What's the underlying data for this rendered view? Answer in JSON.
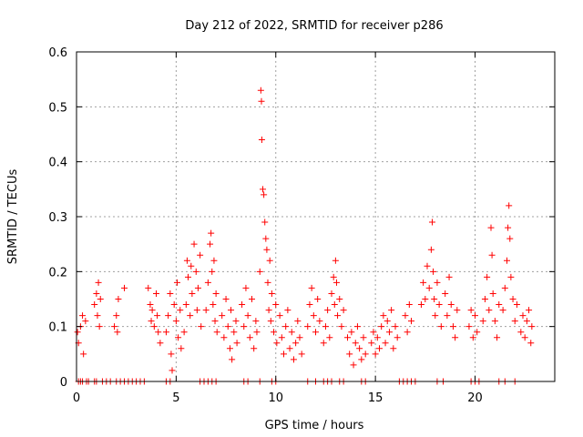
{
  "chart_data": {
    "type": "scatter",
    "title": "Day 212 of 2022, SRMTID for receiver p286",
    "xlabel": "GPS time / hours",
    "ylabel": "SRMTID / TECUs",
    "xlim": [
      0,
      24
    ],
    "ylim": [
      0,
      0.6
    ],
    "grid": true,
    "marker": "plus",
    "color": "#ff0000",
    "x_ticks": [
      0,
      5,
      10,
      15,
      20
    ],
    "x_tick_labels": [
      "0",
      "5",
      "10",
      "15",
      "20"
    ],
    "y_ticks": [
      0,
      0.1,
      0.2,
      0.3,
      0.4,
      0.5,
      0.6
    ],
    "y_tick_labels": [
      "0",
      "0.1",
      "0.2",
      "0.3",
      "0.4",
      "0.5",
      "0.6"
    ],
    "series": [
      {
        "name": "SRMTID",
        "points": [
          [
            0.05,
            0.09
          ],
          [
            0.1,
            0.07
          ],
          [
            0.2,
            0.1
          ],
          [
            0.3,
            0.12
          ],
          [
            0.35,
            0.05
          ],
          [
            0.45,
            0.11
          ],
          [
            0.9,
            0.14
          ],
          [
            1.0,
            0.16
          ],
          [
            1.05,
            0.12
          ],
          [
            1.1,
            0.18
          ],
          [
            1.15,
            0.1
          ],
          [
            1.2,
            0.15
          ],
          [
            1.9,
            0.1
          ],
          [
            2.0,
            0.12
          ],
          [
            2.05,
            0.09
          ],
          [
            2.1,
            0.15
          ],
          [
            2.4,
            0.17
          ],
          [
            3.6,
            0.17
          ],
          [
            3.7,
            0.14
          ],
          [
            3.75,
            0.11
          ],
          [
            3.8,
            0.13
          ],
          [
            3.9,
            0.1
          ],
          [
            4.0,
            0.16
          ],
          [
            4.05,
            0.12
          ],
          [
            4.1,
            0.09
          ],
          [
            4.2,
            0.07
          ],
          [
            4.5,
            0.09
          ],
          [
            4.6,
            0.12
          ],
          [
            4.7,
            0.16
          ],
          [
            4.75,
            0.05
          ],
          [
            4.8,
            0.02
          ],
          [
            4.9,
            0.14
          ],
          [
            5.0,
            0.11
          ],
          [
            5.05,
            0.18
          ],
          [
            5.1,
            0.08
          ],
          [
            5.2,
            0.13
          ],
          [
            5.25,
            0.06
          ],
          [
            5.4,
            0.09
          ],
          [
            5.5,
            0.14
          ],
          [
            5.55,
            0.22
          ],
          [
            5.6,
            0.19
          ],
          [
            5.7,
            0.12
          ],
          [
            5.75,
            0.21
          ],
          [
            5.8,
            0.16
          ],
          [
            5.9,
            0.25
          ],
          [
            6.0,
            0.2
          ],
          [
            6.05,
            0.13
          ],
          [
            6.1,
            0.17
          ],
          [
            6.2,
            0.23
          ],
          [
            6.25,
            0.1
          ],
          [
            6.5,
            0.13
          ],
          [
            6.6,
            0.18
          ],
          [
            6.7,
            0.25
          ],
          [
            6.75,
            0.27
          ],
          [
            6.8,
            0.2
          ],
          [
            6.85,
            0.14
          ],
          [
            6.9,
            0.22
          ],
          [
            6.95,
            0.11
          ],
          [
            7.0,
            0.16
          ],
          [
            7.05,
            0.09
          ],
          [
            7.3,
            0.12
          ],
          [
            7.4,
            0.08
          ],
          [
            7.5,
            0.15
          ],
          [
            7.6,
            0.1
          ],
          [
            7.7,
            0.06
          ],
          [
            7.75,
            0.13
          ],
          [
            7.8,
            0.04
          ],
          [
            7.9,
            0.09
          ],
          [
            8.0,
            0.11
          ],
          [
            8.05,
            0.07
          ],
          [
            8.3,
            0.14
          ],
          [
            8.4,
            0.1
          ],
          [
            8.5,
            0.17
          ],
          [
            8.6,
            0.12
          ],
          [
            8.7,
            0.08
          ],
          [
            8.8,
            0.15
          ],
          [
            8.9,
            0.06
          ],
          [
            9.0,
            0.11
          ],
          [
            9.05,
            0.09
          ],
          [
            9.2,
            0.2
          ],
          [
            9.25,
            0.53
          ],
          [
            9.28,
            0.51
          ],
          [
            9.3,
            0.44
          ],
          [
            9.35,
            0.35
          ],
          [
            9.4,
            0.34
          ],
          [
            9.45,
            0.29
          ],
          [
            9.5,
            0.26
          ],
          [
            9.55,
            0.24
          ],
          [
            9.6,
            0.18
          ],
          [
            9.65,
            0.13
          ],
          [
            9.7,
            0.22
          ],
          [
            9.75,
            0.11
          ],
          [
            9.8,
            0.16
          ],
          [
            9.9,
            0.09
          ],
          [
            10.0,
            0.14
          ],
          [
            10.05,
            0.07
          ],
          [
            10.2,
            0.12
          ],
          [
            10.3,
            0.08
          ],
          [
            10.4,
            0.05
          ],
          [
            10.5,
            0.1
          ],
          [
            10.6,
            0.13
          ],
          [
            10.7,
            0.06
          ],
          [
            10.8,
            0.09
          ],
          [
            10.9,
            0.04
          ],
          [
            11.0,
            0.07
          ],
          [
            11.1,
            0.11
          ],
          [
            11.2,
            0.08
          ],
          [
            11.3,
            0.05
          ],
          [
            11.6,
            0.1
          ],
          [
            11.7,
            0.14
          ],
          [
            11.8,
            0.17
          ],
          [
            11.9,
            0.12
          ],
          [
            12.0,
            0.09
          ],
          [
            12.1,
            0.15
          ],
          [
            12.2,
            0.11
          ],
          [
            12.4,
            0.07
          ],
          [
            12.5,
            0.1
          ],
          [
            12.6,
            0.13
          ],
          [
            12.7,
            0.08
          ],
          [
            12.8,
            0.16
          ],
          [
            12.9,
            0.19
          ],
          [
            12.95,
            0.14
          ],
          [
            13.0,
            0.22
          ],
          [
            13.05,
            0.18
          ],
          [
            13.1,
            0.12
          ],
          [
            13.2,
            0.15
          ],
          [
            13.3,
            0.1
          ],
          [
            13.4,
            0.13
          ],
          [
            13.6,
            0.08
          ],
          [
            13.7,
            0.05
          ],
          [
            13.8,
            0.09
          ],
          [
            13.9,
            0.03
          ],
          [
            14.0,
            0.07
          ],
          [
            14.1,
            0.1
          ],
          [
            14.2,
            0.06
          ],
          [
            14.3,
            0.04
          ],
          [
            14.4,
            0.08
          ],
          [
            14.5,
            0.05
          ],
          [
            14.8,
            0.07
          ],
          [
            14.9,
            0.09
          ],
          [
            15.0,
            0.05
          ],
          [
            15.1,
            0.08
          ],
          [
            15.2,
            0.06
          ],
          [
            15.3,
            0.1
          ],
          [
            15.4,
            0.12
          ],
          [
            15.5,
            0.07
          ],
          [
            15.6,
            0.11
          ],
          [
            15.7,
            0.09
          ],
          [
            15.8,
            0.13
          ],
          [
            15.9,
            0.06
          ],
          [
            16.0,
            0.1
          ],
          [
            16.1,
            0.08
          ],
          [
            16.5,
            0.12
          ],
          [
            16.6,
            0.09
          ],
          [
            16.7,
            0.14
          ],
          [
            16.8,
            0.11
          ],
          [
            17.3,
            0.14
          ],
          [
            17.4,
            0.18
          ],
          [
            17.5,
            0.15
          ],
          [
            17.6,
            0.21
          ],
          [
            17.7,
            0.17
          ],
          [
            17.8,
            0.24
          ],
          [
            17.85,
            0.29
          ],
          [
            17.9,
            0.2
          ],
          [
            17.95,
            0.15
          ],
          [
            18.0,
            0.12
          ],
          [
            18.1,
            0.18
          ],
          [
            18.2,
            0.14
          ],
          [
            18.3,
            0.1
          ],
          [
            18.5,
            0.16
          ],
          [
            18.6,
            0.12
          ],
          [
            18.7,
            0.19
          ],
          [
            18.8,
            0.14
          ],
          [
            18.9,
            0.1
          ],
          [
            19.0,
            0.08
          ],
          [
            19.1,
            0.13
          ],
          [
            19.7,
            0.1
          ],
          [
            19.8,
            0.13
          ],
          [
            19.9,
            0.08
          ],
          [
            20.0,
            0.12
          ],
          [
            20.1,
            0.09
          ],
          [
            20.4,
            0.11
          ],
          [
            20.5,
            0.15
          ],
          [
            20.6,
            0.19
          ],
          [
            20.7,
            0.13
          ],
          [
            20.8,
            0.28
          ],
          [
            20.85,
            0.23
          ],
          [
            20.9,
            0.16
          ],
          [
            21.0,
            0.11
          ],
          [
            21.1,
            0.08
          ],
          [
            21.2,
            0.14
          ],
          [
            21.4,
            0.13
          ],
          [
            21.5,
            0.17
          ],
          [
            21.6,
            0.22
          ],
          [
            21.65,
            0.28
          ],
          [
            21.7,
            0.32
          ],
          [
            21.75,
            0.26
          ],
          [
            21.8,
            0.19
          ],
          [
            21.9,
            0.15
          ],
          [
            22.0,
            0.11
          ],
          [
            22.1,
            0.14
          ],
          [
            22.3,
            0.09
          ],
          [
            22.4,
            0.12
          ],
          [
            22.5,
            0.08
          ],
          [
            22.6,
            0.11
          ],
          [
            22.7,
            0.13
          ],
          [
            22.8,
            0.07
          ],
          [
            22.85,
            0.1
          ]
        ],
        "zero_points": [
          0.1,
          0.2,
          0.3,
          0.5,
          0.6,
          0.9,
          1.0,
          1.3,
          1.5,
          1.7,
          2.0,
          2.2,
          2.4,
          2.6,
          2.8,
          3.0,
          3.2,
          3.4,
          4.5,
          4.7,
          6.2,
          6.4,
          6.6,
          6.8,
          7.0,
          8.4,
          8.6,
          9.2,
          9.8,
          10.0,
          11.6,
          12.0,
          12.4,
          12.6,
          12.8,
          13.2,
          13.4,
          14.3,
          14.5,
          16.2,
          16.4,
          16.6,
          16.8,
          17.0,
          18.1,
          18.4,
          19.8,
          20.0,
          20.2,
          21.2,
          21.5,
          22.0
        ]
      }
    ]
  }
}
